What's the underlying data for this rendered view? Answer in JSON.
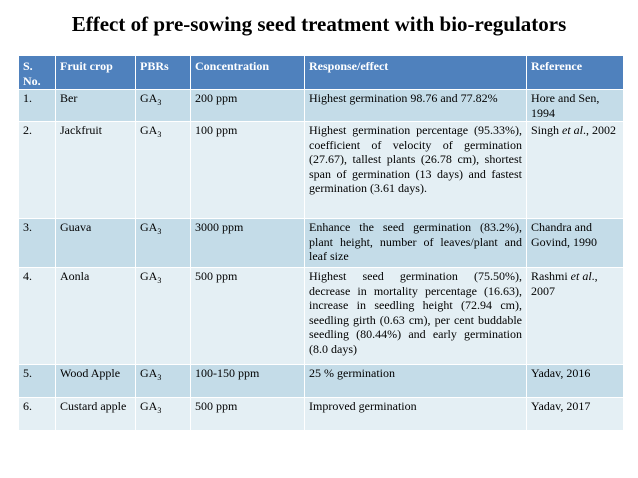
{
  "title": "Effect of pre-sowing seed treatment with bio-regulators",
  "table": {
    "headers": {
      "sno_line1": "S.",
      "sno_line2": "No.",
      "crop": "Fruit crop",
      "pbrs": "PBRs",
      "concentration": "Concentration",
      "response": "Response/effect",
      "reference": "Reference"
    },
    "rows": [
      {
        "sno": "1.",
        "crop": "Ber",
        "pbr_base": "GA",
        "pbr_sub": "3",
        "concentration": "200 ppm",
        "response": "Highest germination 98.76 and 77.82%",
        "reference": "Hore and Sen, 1994"
      },
      {
        "sno": "2.",
        "crop": "Jackfruit",
        "pbr_base": "GA",
        "pbr_sub": "3",
        "concentration": "100 ppm",
        "response": "Highest germination percentage (95.33%), coefficient of velocity of germination (27.67), tallest plants (26.78 cm), shortest span of germination (13 days) and fastest germination (3.61 days).",
        "reference_prefix": "Singh ",
        "reference_italic": "et al",
        "reference_suffix": "., 2002"
      },
      {
        "sno": "3.",
        "crop": "Guava",
        "pbr_base": "GA",
        "pbr_sub": "3",
        "concentration": "3000 ppm",
        "response": "Enhance the seed germination (83.2%), plant height, number of leaves/plant and leaf size",
        "reference": "Chandra and Govind, 1990"
      },
      {
        "sno": "4.",
        "crop": "Aonla",
        "pbr_base": "GA",
        "pbr_sub": "3",
        "concentration": "500 ppm",
        "response": "Highest seed germination (75.50%), decrease in mortality percentage (16.63), increase in seedling height (72.94 cm), seedling girth (0.63 cm), per cent buddable seedling (80.44%) and early germination (8.0 days)",
        "reference_prefix": "Rashmi ",
        "reference_italic": "et al",
        "reference_suffix": "., 2007"
      },
      {
        "sno": "5.",
        "crop": "Wood Apple",
        "pbr_base": "GA",
        "pbr_sub": "3",
        "concentration": "100-150 ppm",
        "response": "25 % germination",
        "reference": "Yadav, 2016"
      },
      {
        "sno": "6.",
        "crop": "Custard apple",
        "pbr_base": "GA",
        "pbr_sub": "3",
        "concentration": "500 ppm",
        "response": "Improved germination",
        "reference": "Yadav, 2017"
      }
    ]
  },
  "colors": {
    "header_bg": "#4f81bd",
    "row_dark": "#c4dce8",
    "row_light": "#e4eff4"
  }
}
